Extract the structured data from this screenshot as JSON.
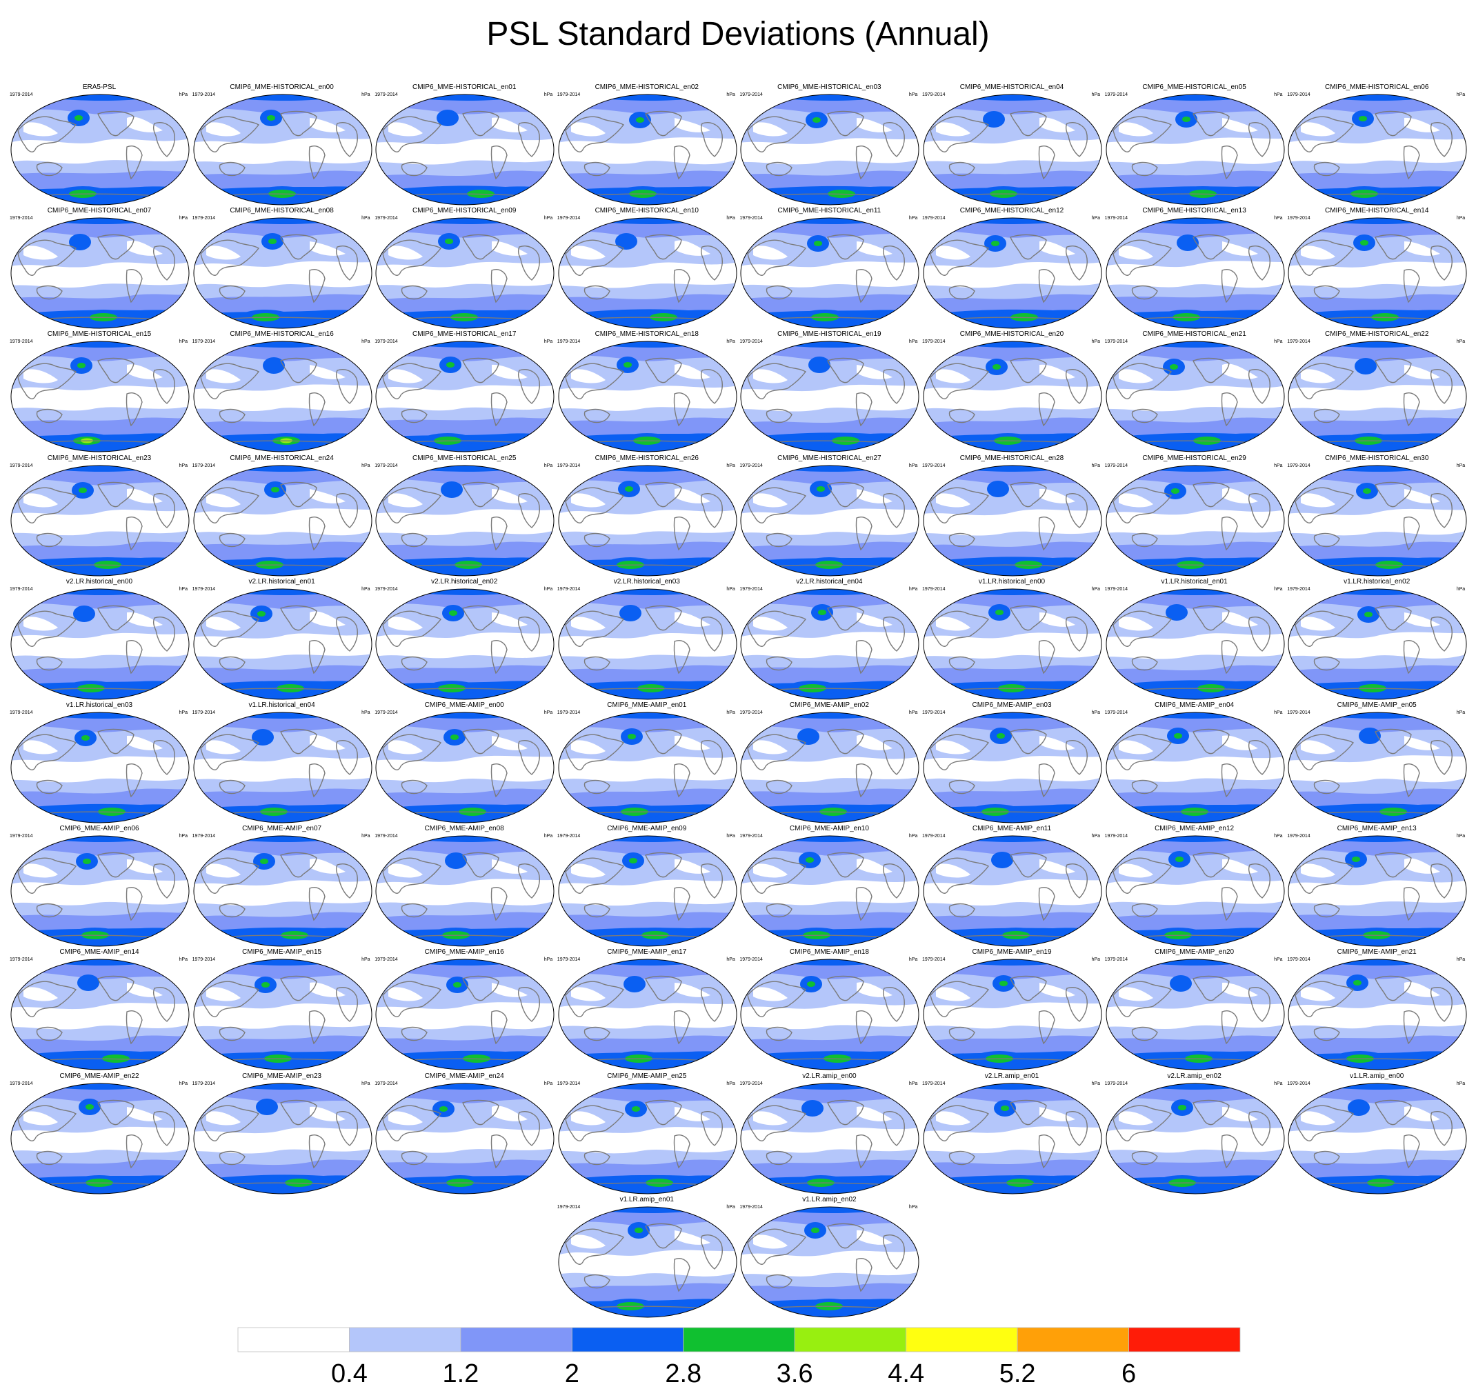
{
  "title": "PSL Standard Deviations (Annual)",
  "period": "1979-2014",
  "units": "hPa",
  "colors": {
    "coastline": "#7a7a7a",
    "border": "#000000",
    "levels": [
      "#ffffff",
      "#b4c6fa",
      "#8096f8",
      "#0a5ff2",
      "#10c030",
      "#98ef10",
      "#ffff10",
      "#ffa008",
      "#ff1c08"
    ]
  },
  "colorbar": {
    "tick_labels": [
      "0.4",
      "1.2",
      "2",
      "2.8",
      "3.6",
      "4.4",
      "5.2",
      "6"
    ]
  },
  "panels": [
    "ERA5-PSL",
    "CMIP6_MME-HISTORICAL_en00",
    "CMIP6_MME-HISTORICAL_en01",
    "CMIP6_MME-HISTORICAL_en02",
    "CMIP6_MME-HISTORICAL_en03",
    "CMIP6_MME-HISTORICAL_en04",
    "CMIP6_MME-HISTORICAL_en05",
    "CMIP6_MME-HISTORICAL_en06",
    "CMIP6_MME-HISTORICAL_en07",
    "CMIP6_MME-HISTORICAL_en08",
    "CMIP6_MME-HISTORICAL_en09",
    "CMIP6_MME-HISTORICAL_en10",
    "CMIP6_MME-HISTORICAL_en11",
    "CMIP6_MME-HISTORICAL_en12",
    "CMIP6_MME-HISTORICAL_en13",
    "CMIP6_MME-HISTORICAL_en14",
    "CMIP6_MME-HISTORICAL_en15",
    "CMIP6_MME-HISTORICAL_en16",
    "CMIP6_MME-HISTORICAL_en17",
    "CMIP6_MME-HISTORICAL_en18",
    "CMIP6_MME-HISTORICAL_en19",
    "CMIP6_MME-HISTORICAL_en20",
    "CMIP6_MME-HISTORICAL_en21",
    "CMIP6_MME-HISTORICAL_en22",
    "CMIP6_MME-HISTORICAL_en23",
    "CMIP6_MME-HISTORICAL_en24",
    "CMIP6_MME-HISTORICAL_en25",
    "CMIP6_MME-HISTORICAL_en26",
    "CMIP6_MME-HISTORICAL_en27",
    "CMIP6_MME-HISTORICAL_en28",
    "CMIP6_MME-HISTORICAL_en29",
    "CMIP6_MME-HISTORICAL_en30",
    "v2.LR.historical_en00",
    "v2.LR.historical_en01",
    "v2.LR.historical_en02",
    "v2.LR.historical_en03",
    "v2.LR.historical_en04",
    "v1.LR.historical_en00",
    "v1.LR.historical_en01",
    "v1.LR.historical_en02",
    "v1.LR.historical_en03",
    "v1.LR.historical_en04",
    "CMIP6_MME-AMIP_en00",
    "CMIP6_MME-AMIP_en01",
    "CMIP6_MME-AMIP_en02",
    "CMIP6_MME-AMIP_en03",
    "CMIP6_MME-AMIP_en04",
    "CMIP6_MME-AMIP_en05",
    "CMIP6_MME-AMIP_en06",
    "CMIP6_MME-AMIP_en07",
    "CMIP6_MME-AMIP_en08",
    "CMIP6_MME-AMIP_en09",
    "CMIP6_MME-AMIP_en10",
    "CMIP6_MME-AMIP_en11",
    "CMIP6_MME-AMIP_en12",
    "CMIP6_MME-AMIP_en13",
    "CMIP6_MME-AMIP_en14",
    "CMIP6_MME-AMIP_en15",
    "CMIP6_MME-AMIP_en16",
    "CMIP6_MME-AMIP_en17",
    "CMIP6_MME-AMIP_en18",
    "CMIP6_MME-AMIP_en19",
    "CMIP6_MME-AMIP_en20",
    "CMIP6_MME-AMIP_en21",
    "CMIP6_MME-AMIP_en22",
    "CMIP6_MME-AMIP_en23",
    "CMIP6_MME-AMIP_en24",
    "CMIP6_MME-AMIP_en25",
    "v2.LR.amip_en00",
    "v2.LR.amip_en01",
    "v2.LR.amip_en02",
    "v1.LR.amip_en00",
    "v1.LR.amip_en01",
    "v1.LR.amip_en02"
  ]
}
